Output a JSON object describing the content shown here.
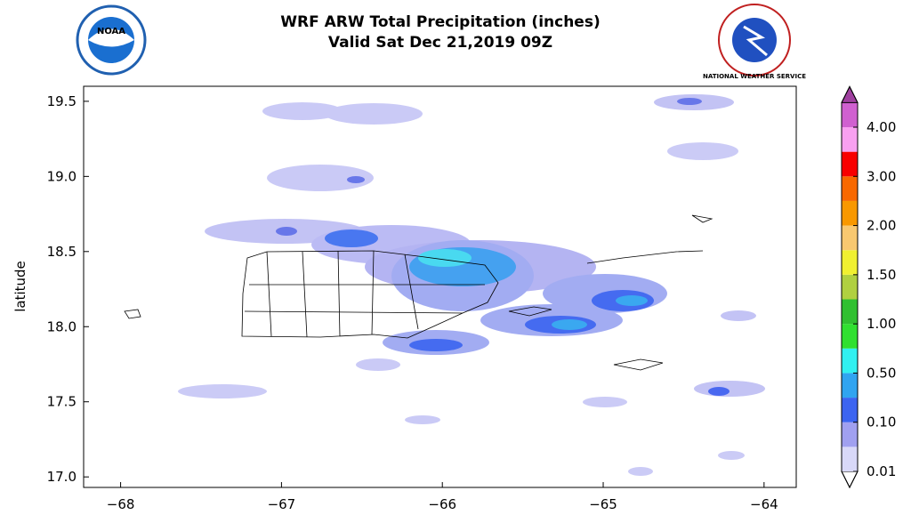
{
  "chart_data": {
    "type": "map",
    "title": "WRF ARW Total Precipitation (inches)",
    "subtitle": "Valid Sat Dec 21,2019 09Z",
    "y_label": "latitude",
    "logos": {
      "left": "NOAA",
      "right": "NATIONAL WEATHER SERVICE"
    },
    "xlim": [
      -68.23,
      -63.8
    ],
    "ylim": [
      16.93,
      19.6
    ],
    "xticks": [
      {
        "value": -68,
        "label": "−68"
      },
      {
        "value": -67,
        "label": "−67"
      },
      {
        "value": -66,
        "label": "−66"
      },
      {
        "value": -65,
        "label": "−65"
      },
      {
        "value": -64,
        "label": "−64"
      }
    ],
    "yticks": [
      {
        "value": 17,
        "label": "17.0"
      },
      17.5,
      {
        "value": 18,
        "label": "18.0"
      },
      18.5,
      {
        "value": 19,
        "label": "19.0"
      },
      19.5
    ],
    "colorbar": {
      "ticks": [
        0.01,
        {
          "value": 0.1,
          "label": "0.10"
        },
        {
          "value": 0.5,
          "label": "0.50"
        },
        {
          "value": 1,
          "label": "1.00"
        },
        {
          "value": 1.5,
          "label": "1.50"
        },
        {
          "value": 2,
          "label": "2.00"
        },
        {
          "value": 3,
          "label": "3.00"
        },
        {
          "value": 4,
          "label": "4.00"
        }
      ],
      "colors": [
        "#d8d8f8",
        "#a0a0f0",
        "#3c64f0",
        "#30a4f0",
        "#30f0f0",
        "#30e030",
        "#30c030",
        "#b0d040",
        "#f0f030",
        "#f8c870",
        "#f89800",
        "#f86800",
        "#f80000",
        "#f8a0f0"
      ],
      "over_color": "#d060d0",
      "over_tip_color": "#a040a0",
      "under_color": "#ffffff"
    }
  }
}
